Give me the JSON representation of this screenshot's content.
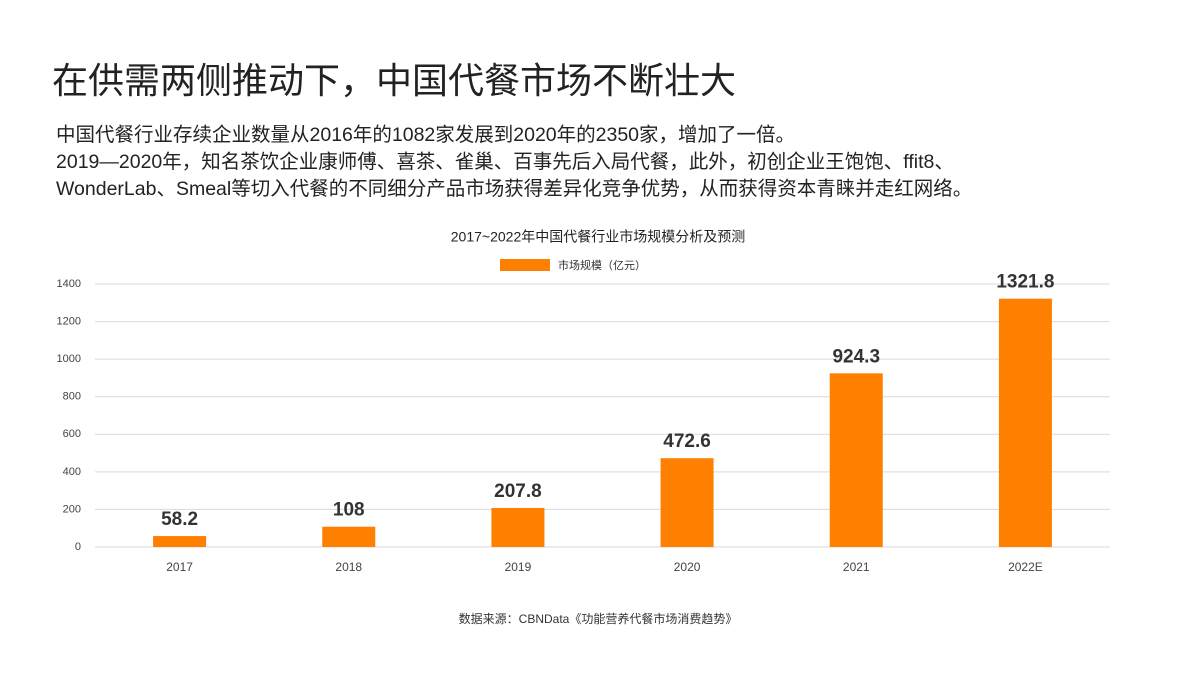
{
  "header": {
    "title": "在供需两侧推动下，中国代餐市场不断壮大",
    "lines": [
      "中国代餐行业存续企业数量从2016年的1082家发展到2020年的2350家，增加了一倍。",
      "2019—2020年，知名茶饮企业康师傅、喜茶、雀巢、百事先后入局代餐，此外，初创企业王饱饱、ffit8、",
      "WonderLab、Smeal等切入代餐的不同细分产品市场获得差异化竞争优势，从而获得资本青睐并走红网络。"
    ]
  },
  "chart_data": {
    "type": "bar",
    "title": "2017~2022年中国代餐行业市场规模分析及预测",
    "categories": [
      "2017",
      "2018",
      "2019",
      "2020",
      "2021",
      "2022E"
    ],
    "series": [
      {
        "name": "市场规模（亿元）",
        "color": "#ff7f00",
        "values": [
          58.2,
          108,
          207.8,
          472.6,
          924.3,
          1321.8
        ]
      }
    ],
    "ylim": [
      0,
      1400
    ],
    "yticks": [
      0,
      200,
      400,
      600,
      800,
      1000,
      1200,
      1400
    ],
    "grid": true,
    "source": "数据来源：CBNData《功能营养代餐市场消费趋势》"
  }
}
